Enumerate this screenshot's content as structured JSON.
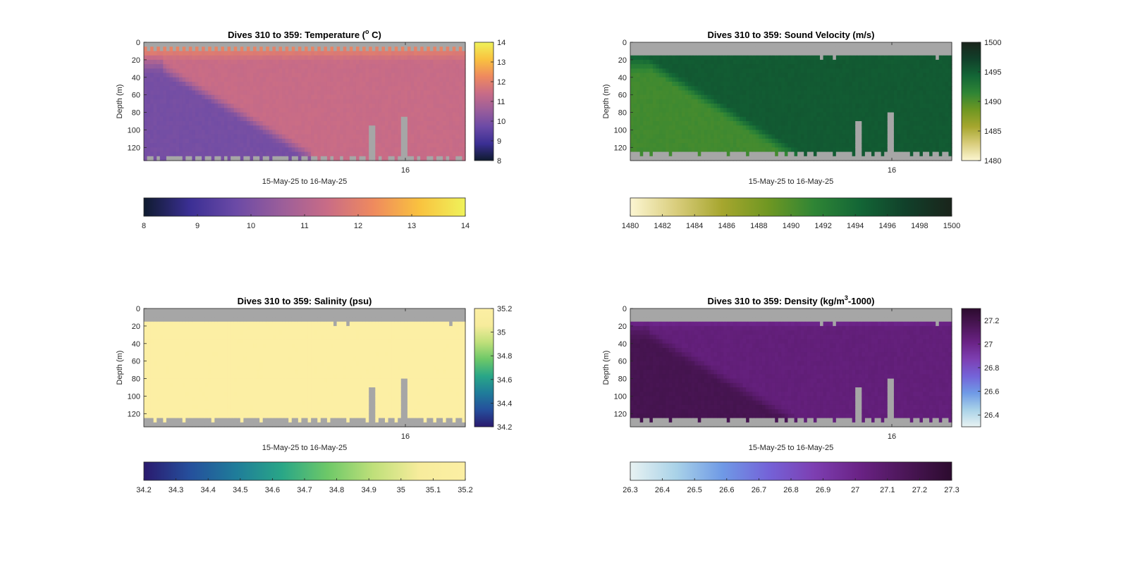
{
  "figure": {
    "background": "#ffffff",
    "nodata_color": "#a6a6a6"
  },
  "chart_data": [
    {
      "type": "heatmap",
      "title_prefix": "Dives 310 to 359: Temperature (",
      "title_sup": "o",
      "title_suffix": " C)",
      "ylabel": "Depth (m)",
      "xlabel": "15-May-25 to 16-May-25",
      "x_ticks": [
        "16"
      ],
      "y_ticks": [
        "0",
        "20",
        "40",
        "60",
        "80",
        "100",
        "120"
      ],
      "ylim": [
        0,
        135
      ],
      "clim": [
        8,
        14
      ],
      "colormap": [
        "#0f1b2f",
        "#3b2f94",
        "#6b4aa6",
        "#9b5e9a",
        "#c96c86",
        "#ef8a5e",
        "#f9c23f",
        "#eff25a"
      ],
      "colorbar_right_ticks": [
        "14",
        "13",
        "12",
        "11",
        "10",
        "9",
        "8"
      ],
      "colorbar_bottom_ticks": [
        "8",
        "9",
        "10",
        "11",
        "12",
        "13",
        "14"
      ],
      "summary": {
        "surface": 12.3,
        "deep_cold": 9.9,
        "deep_warm": 11.4,
        "front_start_depth": 30,
        "front_end_depth": 130,
        "front_start_x": 0.06,
        "front_end_x": 0.52
      },
      "gaps": [
        {
          "x": 0.71,
          "top": 95
        },
        {
          "x": 0.81,
          "top": 85
        }
      ],
      "top_gap": 6,
      "bottom_gap": 131
    },
    {
      "type": "heatmap",
      "title_prefix": "Dives 310 to 359: Sound Velocity (m/s)",
      "title_sup": "",
      "title_suffix": "",
      "ylabel": "Depth (m)",
      "xlabel": "15-May-25 to 16-May-25",
      "x_ticks": [
        "16"
      ],
      "y_ticks": [
        "0",
        "20",
        "40",
        "60",
        "80",
        "100",
        "120"
      ],
      "ylim": [
        0,
        135
      ],
      "clim": [
        1480,
        1500
      ],
      "colormap": [
        "#fcf6d2",
        "#d9cd7c",
        "#a6a62e",
        "#6f9722",
        "#2f8535",
        "#136636",
        "#11402a",
        "#1a241b"
      ],
      "colorbar_right_ticks": [
        "1500",
        "1495",
        "1490",
        "1485",
        "1480"
      ],
      "colorbar_bottom_ticks": [
        "1480",
        "1482",
        "1484",
        "1486",
        "1488",
        "1490",
        "1492",
        "1494",
        "1496",
        "1498",
        "1500"
      ],
      "summary": {
        "surface": 1494.6,
        "deep_cold": 1490.6,
        "deep_warm": 1495.2,
        "front_start_depth": 25,
        "front_end_depth": 130,
        "front_start_x": 0.06,
        "front_end_x": 0.52
      },
      "gaps": [
        {
          "x": 0.71,
          "top": 92
        },
        {
          "x": 0.81,
          "top": 80
        }
      ],
      "top_gap": 14,
      "bottom_gap": 125
    },
    {
      "type": "heatmap",
      "title_prefix": "Dives 310 to 359: Salinity (psu)",
      "title_sup": "",
      "title_suffix": "",
      "ylabel": "Depth (m)",
      "xlabel": "15-May-25 to 16-May-25",
      "x_ticks": [
        "16"
      ],
      "y_ticks": [
        "0",
        "20",
        "40",
        "60",
        "80",
        "100",
        "120"
      ],
      "ylim": [
        0,
        135
      ],
      "clim": [
        34.2,
        35.2
      ],
      "colormap": [
        "#2a1a6e",
        "#254f9c",
        "#1f7c9a",
        "#29a687",
        "#6dc868",
        "#bfe07a",
        "#f7ec9c",
        "#fcefa4"
      ],
      "colorbar_right_ticks": [
        "35.2",
        "35",
        "34.8",
        "34.6",
        "34.4",
        "34.2"
      ],
      "colorbar_bottom_ticks": [
        "34.2",
        "34.3",
        "34.4",
        "34.5",
        "34.6",
        "34.7",
        "34.8",
        "34.9",
        "35",
        "35.1",
        "35.2"
      ],
      "summary": {
        "surface": 35.2,
        "deep_cold": 35.2,
        "deep_warm": 35.2,
        "front_start_depth": 30,
        "front_end_depth": 130,
        "front_start_x": 0.06,
        "front_end_x": 0.52
      },
      "gaps": [
        {
          "x": 0.71,
          "top": 88
        },
        {
          "x": 0.81,
          "top": 80
        }
      ],
      "top_gap": 14,
      "bottom_gap": 125
    },
    {
      "type": "heatmap",
      "title_prefix": "Dives 310 to 359: Density (kg/m",
      "title_sup": "3",
      "title_suffix": "-1000)",
      "ylabel": "Depth (m)",
      "xlabel": "15-May-25 to 16-May-25",
      "x_ticks": [
        "16"
      ],
      "y_ticks": [
        "0",
        "20",
        "40",
        "60",
        "80",
        "100",
        "120"
      ],
      "ylim": [
        0,
        135
      ],
      "clim": [
        26.3,
        27.3
      ],
      "colormap": [
        "#e8f2f2",
        "#a9d2e8",
        "#6f9ae6",
        "#7463d8",
        "#7d3fb2",
        "#6a2285",
        "#4b1657",
        "#2c0b2e"
      ],
      "colorbar_right_ticks": [
        "27.2",
        "27",
        "26.8",
        "26.6",
        "26.4"
      ],
      "colorbar_bottom_ticks": [
        "26.3",
        "26.4",
        "26.5",
        "26.6",
        "26.7",
        "26.8",
        "26.9",
        "27",
        "27.1",
        "27.2",
        "27.3"
      ],
      "summary": {
        "surface": 26.85,
        "deep_cold": 27.18,
        "deep_warm": 27.05,
        "front_start_depth": 30,
        "front_end_depth": 130,
        "front_start_x": 0.06,
        "front_end_x": 0.52
      },
      "gaps": [
        {
          "x": 0.71,
          "top": 92
        },
        {
          "x": 0.81,
          "top": 80
        }
      ],
      "top_gap": 14,
      "bottom_gap": 125
    }
  ]
}
